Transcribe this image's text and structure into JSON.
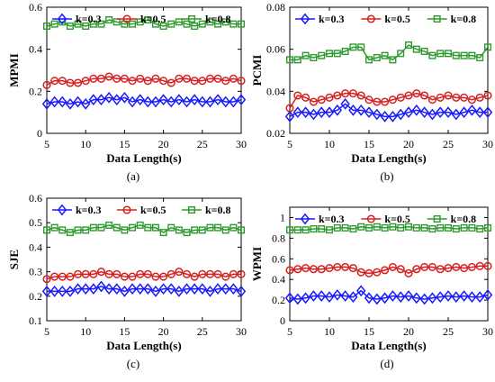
{
  "chart_data": [
    {
      "type": "line",
      "panel": "a",
      "caption": "(a)",
      "xlabel": "Data Length(s)",
      "ylabel": "MPMI",
      "xlim": [
        5,
        30
      ],
      "ylim": [
        0,
        0.6
      ],
      "xticks": [
        "5",
        "10",
        "15",
        "20",
        "25",
        "30"
      ],
      "yticks": [
        "0",
        "0.2",
        "0.4",
        "0.6"
      ],
      "x": [
        5,
        6,
        7,
        8,
        9,
        10,
        11,
        12,
        13,
        14,
        15,
        16,
        17,
        18,
        19,
        20,
        21,
        22,
        23,
        24,
        25,
        26,
        27,
        28,
        29,
        30
      ],
      "legend_position": "top",
      "series": [
        {
          "name": "k=0.3",
          "color": "#1a1aff",
          "marker": "diamond",
          "values": [
            0.14,
            0.15,
            0.15,
            0.14,
            0.15,
            0.14,
            0.16,
            0.16,
            0.17,
            0.16,
            0.17,
            0.15,
            0.16,
            0.15,
            0.15,
            0.16,
            0.15,
            0.16,
            0.15,
            0.16,
            0.15,
            0.15,
            0.16,
            0.15,
            0.15,
            0.16
          ]
        },
        {
          "name": "k=0.5",
          "color": "#d62020",
          "marker": "circle",
          "values": [
            0.23,
            0.25,
            0.25,
            0.24,
            0.24,
            0.25,
            0.26,
            0.26,
            0.27,
            0.26,
            0.26,
            0.25,
            0.26,
            0.25,
            0.26,
            0.25,
            0.24,
            0.26,
            0.26,
            0.25,
            0.25,
            0.26,
            0.26,
            0.25,
            0.26,
            0.25
          ]
        },
        {
          "name": "k=0.8",
          "color": "#2e9a2e",
          "marker": "square",
          "values": [
            0.51,
            0.52,
            0.53,
            0.51,
            0.52,
            0.51,
            0.52,
            0.52,
            0.54,
            0.53,
            0.52,
            0.52,
            0.53,
            0.54,
            0.52,
            0.51,
            0.52,
            0.53,
            0.52,
            0.51,
            0.52,
            0.53,
            0.52,
            0.53,
            0.52,
            0.52
          ]
        }
      ]
    },
    {
      "type": "line",
      "panel": "b",
      "caption": "(b)",
      "xlabel": "Data Length(s)",
      "ylabel": "PCMI",
      "xlim": [
        5,
        30
      ],
      "ylim": [
        0.02,
        0.08
      ],
      "xticks": [
        "5",
        "10",
        "15",
        "20",
        "25",
        "30"
      ],
      "yticks": [
        "0.02",
        "0.04",
        "0.06",
        "0.08"
      ],
      "x": [
        5,
        6,
        7,
        8,
        9,
        10,
        11,
        12,
        13,
        14,
        15,
        16,
        17,
        18,
        19,
        20,
        21,
        22,
        23,
        24,
        25,
        26,
        27,
        28,
        29,
        30
      ],
      "legend_position": "top",
      "series": [
        {
          "name": "k=0.3",
          "color": "#1a1aff",
          "marker": "diamond",
          "values": [
            0.028,
            0.03,
            0.03,
            0.029,
            0.03,
            0.03,
            0.031,
            0.034,
            0.031,
            0.031,
            0.03,
            0.029,
            0.028,
            0.028,
            0.029,
            0.03,
            0.031,
            0.03,
            0.029,
            0.03,
            0.03,
            0.029,
            0.03,
            0.031,
            0.03,
            0.03
          ]
        },
        {
          "name": "k=0.5",
          "color": "#d62020",
          "marker": "circle",
          "values": [
            0.032,
            0.038,
            0.037,
            0.035,
            0.036,
            0.037,
            0.038,
            0.039,
            0.039,
            0.038,
            0.036,
            0.035,
            0.035,
            0.036,
            0.037,
            0.038,
            0.039,
            0.038,
            0.036,
            0.037,
            0.038,
            0.037,
            0.037,
            0.036,
            0.037,
            0.038
          ]
        },
        {
          "name": "k=0.8",
          "color": "#2e9a2e",
          "marker": "square",
          "values": [
            0.055,
            0.055,
            0.057,
            0.056,
            0.057,
            0.058,
            0.058,
            0.059,
            0.061,
            0.061,
            0.055,
            0.056,
            0.057,
            0.055,
            0.058,
            0.062,
            0.06,
            0.059,
            0.057,
            0.058,
            0.058,
            0.057,
            0.057,
            0.057,
            0.056,
            0.061
          ]
        }
      ]
    },
    {
      "type": "line",
      "panel": "c",
      "caption": "(c)",
      "xlabel": "Data Length(s)",
      "ylabel": "SJE",
      "xlim": [
        5,
        30
      ],
      "ylim": [
        0.1,
        0.6
      ],
      "xticks": [
        "5",
        "10",
        "15",
        "20",
        "25",
        "30"
      ],
      "yticks": [
        "0.1",
        "0.2",
        "0.3",
        "0.4",
        "0.5",
        "0.6"
      ],
      "x": [
        5,
        6,
        7,
        8,
        9,
        10,
        11,
        12,
        13,
        14,
        15,
        16,
        17,
        18,
        19,
        20,
        21,
        22,
        23,
        24,
        25,
        26,
        27,
        28,
        29,
        30
      ],
      "legend_position": "top",
      "series": [
        {
          "name": "k=0.3",
          "color": "#1a1aff",
          "marker": "diamond",
          "values": [
            0.22,
            0.22,
            0.22,
            0.22,
            0.23,
            0.23,
            0.23,
            0.24,
            0.23,
            0.23,
            0.22,
            0.23,
            0.23,
            0.23,
            0.22,
            0.23,
            0.23,
            0.22,
            0.23,
            0.23,
            0.23,
            0.22,
            0.23,
            0.23,
            0.23,
            0.22
          ]
        },
        {
          "name": "k=0.5",
          "color": "#d62020",
          "marker": "circle",
          "values": [
            0.27,
            0.28,
            0.28,
            0.28,
            0.29,
            0.29,
            0.29,
            0.3,
            0.29,
            0.29,
            0.28,
            0.28,
            0.29,
            0.29,
            0.28,
            0.28,
            0.29,
            0.3,
            0.29,
            0.28,
            0.29,
            0.29,
            0.29,
            0.28,
            0.29,
            0.29
          ]
        },
        {
          "name": "k=0.8",
          "color": "#2e9a2e",
          "marker": "square",
          "values": [
            0.47,
            0.48,
            0.47,
            0.46,
            0.47,
            0.47,
            0.48,
            0.48,
            0.49,
            0.48,
            0.47,
            0.48,
            0.49,
            0.48,
            0.48,
            0.46,
            0.48,
            0.47,
            0.46,
            0.47,
            0.47,
            0.48,
            0.48,
            0.47,
            0.48,
            0.47
          ]
        }
      ]
    },
    {
      "type": "line",
      "panel": "d",
      "caption": "(d)",
      "xlabel": "Data Length(s)",
      "ylabel": "WPMI",
      "xlim": [
        5,
        30
      ],
      "ylim": [
        0,
        1.1
      ],
      "xticks": [
        "5",
        "10",
        "15",
        "20",
        "25",
        "30"
      ],
      "yticks": [
        "0",
        "0.2",
        "0.4",
        "0.6",
        "0.8",
        "1"
      ],
      "x": [
        5,
        6,
        7,
        8,
        9,
        10,
        11,
        12,
        13,
        14,
        15,
        16,
        17,
        18,
        19,
        20,
        21,
        22,
        23,
        24,
        25,
        26,
        27,
        28,
        29,
        30
      ],
      "legend_position": "top",
      "series": [
        {
          "name": "k=0.3",
          "color": "#1a1aff",
          "marker": "diamond",
          "values": [
            0.22,
            0.21,
            0.22,
            0.24,
            0.24,
            0.23,
            0.25,
            0.24,
            0.23,
            0.29,
            0.22,
            0.21,
            0.22,
            0.24,
            0.23,
            0.24,
            0.22,
            0.21,
            0.22,
            0.23,
            0.24,
            0.23,
            0.24,
            0.23,
            0.23,
            0.25
          ]
        },
        {
          "name": "k=0.5",
          "color": "#d62020",
          "marker": "circle",
          "values": [
            0.49,
            0.5,
            0.51,
            0.5,
            0.5,
            0.51,
            0.52,
            0.52,
            0.51,
            0.47,
            0.46,
            0.47,
            0.49,
            0.52,
            0.5,
            0.46,
            0.5,
            0.52,
            0.52,
            0.5,
            0.51,
            0.52,
            0.51,
            0.52,
            0.53,
            0.53
          ]
        },
        {
          "name": "k=0.8",
          "color": "#2e9a2e",
          "marker": "square",
          "values": [
            0.88,
            0.88,
            0.88,
            0.89,
            0.89,
            0.88,
            0.9,
            0.9,
            0.89,
            0.91,
            0.9,
            0.91,
            0.9,
            0.91,
            0.9,
            0.91,
            0.9,
            0.9,
            0.89,
            0.9,
            0.9,
            0.89,
            0.9,
            0.9,
            0.89,
            0.9
          ]
        }
      ]
    }
  ]
}
